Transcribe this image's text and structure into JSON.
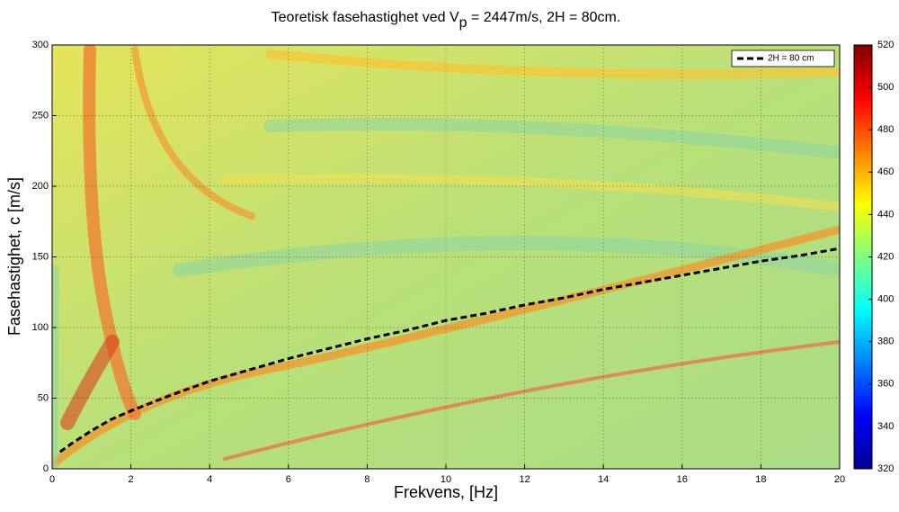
{
  "chart_data": {
    "type": "line",
    "title": [
      "Teoretisk fasehastighet ved V",
      "p",
      " = 2447m/s, 2H = 80cm."
    ],
    "x_label": "Frekvens, [Hz]",
    "y_label": "Fasehastighet, c [m/s]",
    "xlim": [
      0,
      20
    ],
    "ylim": [
      0,
      300
    ],
    "xticks": [
      0,
      2,
      4,
      6,
      8,
      10,
      12,
      14,
      16,
      18,
      20
    ],
    "yticks": [
      0,
      50,
      100,
      150,
      200,
      250,
      300
    ],
    "grid": true,
    "legend_position": "upper-right",
    "x": [
      0.2,
      0.5,
      1,
      1.5,
      2,
      3,
      4,
      5,
      6,
      7,
      8,
      9,
      10,
      11,
      12,
      13,
      14,
      15,
      16,
      17,
      18,
      19,
      20
    ],
    "series": [
      {
        "name": "2H = 80 cm",
        "color": "#000000",
        "values": [
          12,
          18,
          27,
          35,
          41,
          52,
          62,
          70,
          78,
          85,
          92,
          98,
          105,
          110,
          116,
          121,
          127,
          132,
          137,
          142,
          147,
          151,
          156
        ]
      }
    ],
    "colorbar": {
      "lim": [
        320,
        520
      ],
      "ticks": [
        320,
        340,
        360,
        380,
        400,
        420,
        440,
        460,
        480,
        500,
        520
      ]
    }
  }
}
